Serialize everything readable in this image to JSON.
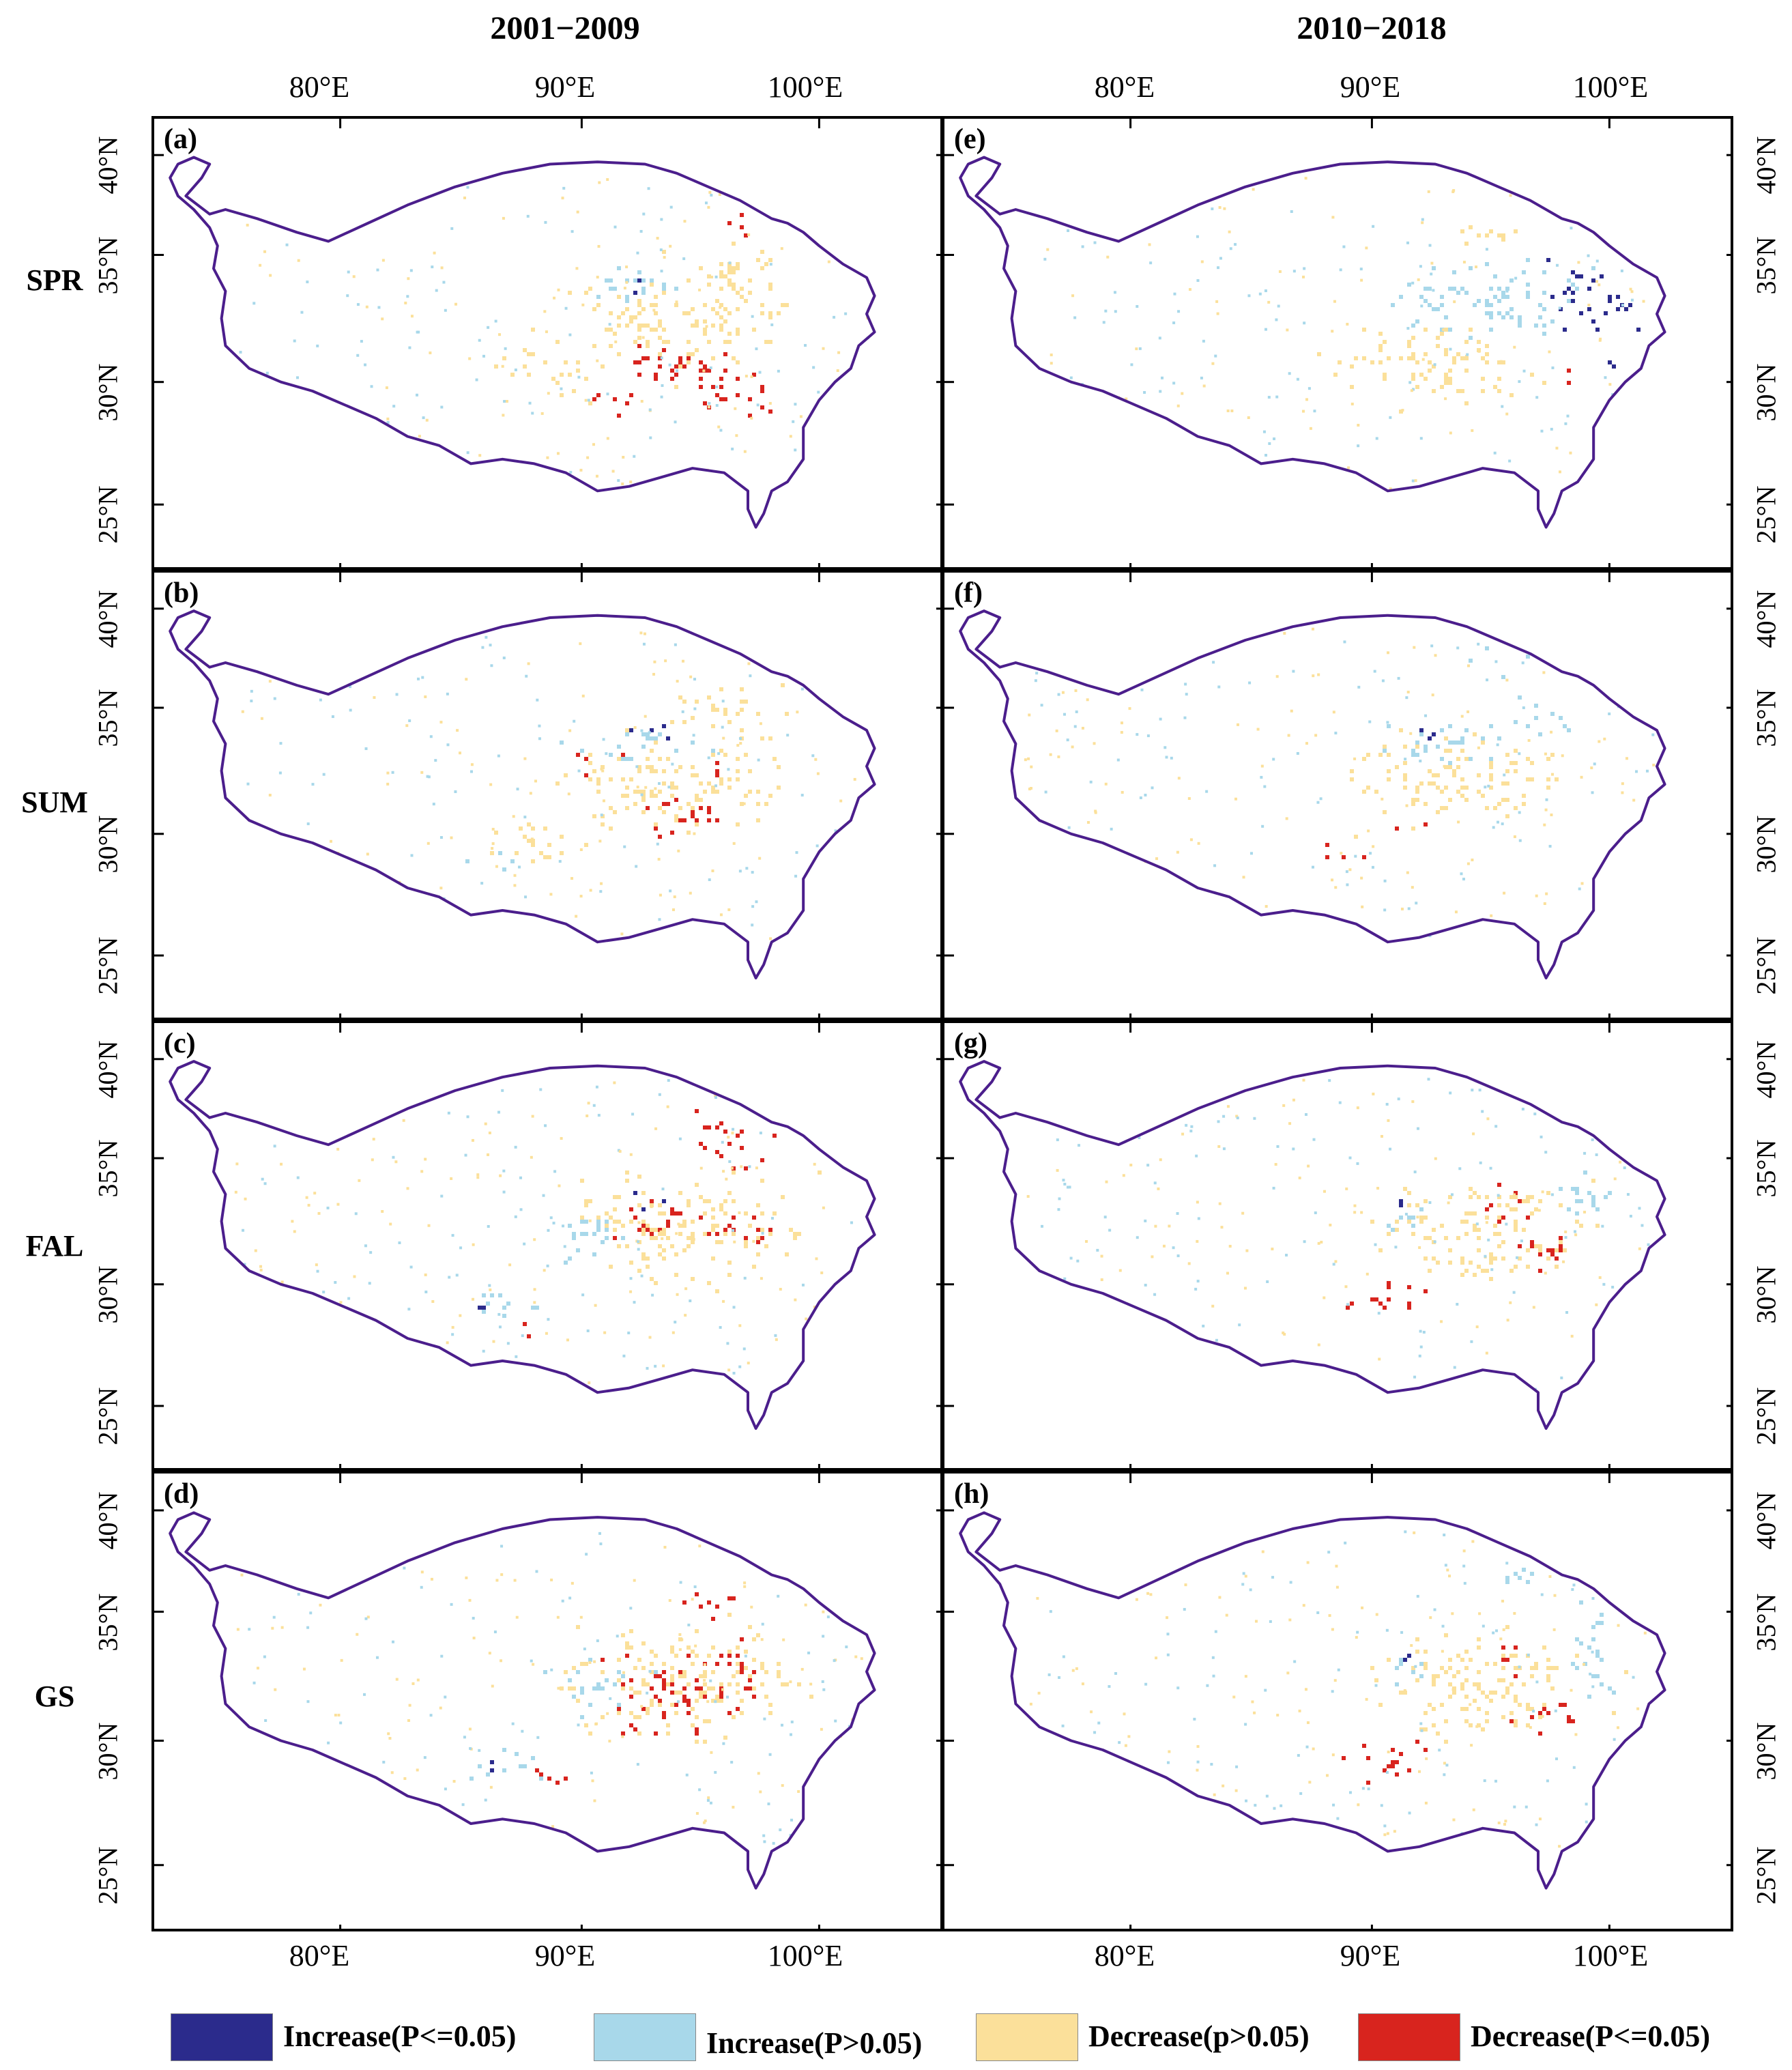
{
  "columns": [
    "2001−2009",
    "2010−2018"
  ],
  "rows": [
    "SPR",
    "SUM",
    "FAL",
    "GS"
  ],
  "panels": [
    {
      "label": "(a)",
      "row": "SPR",
      "period": "2001−2009"
    },
    {
      "label": "(b)",
      "row": "SUM",
      "period": "2001−2009"
    },
    {
      "label": "(c)",
      "row": "FAL",
      "period": "2001−2009"
    },
    {
      "label": "(d)",
      "row": "GS",
      "period": "2001−2009"
    },
    {
      "label": "(e)",
      "row": "SPR",
      "period": "2010−2018"
    },
    {
      "label": "(f)",
      "row": "SUM",
      "period": "2010−2018"
    },
    {
      "label": "(g)",
      "row": "FAL",
      "period": "2010−2018"
    },
    {
      "label": "(h)",
      "row": "GS",
      "period": "2010−2018"
    }
  ],
  "lon_ticks": [
    "80°E",
    "90°E",
    "100°E"
  ],
  "lat_ticks": [
    "40°N",
    "35°N",
    "30°N",
    "25°N"
  ],
  "legend": [
    {
      "label": "Increase(P<=0.05)",
      "color": "#2b2b8c"
    },
    {
      "label": "Increase(P>0.05)",
      "color": "#a8d8ea"
    },
    {
      "label": "Decrease(p>0.05)",
      "color": "#fbe09a"
    },
    {
      "label": "Decrease(P<=0.05)",
      "color": "#d8241e"
    }
  ],
  "colors": {
    "boundary": "#4b1e8c",
    "panel_border": "#000000"
  }
}
